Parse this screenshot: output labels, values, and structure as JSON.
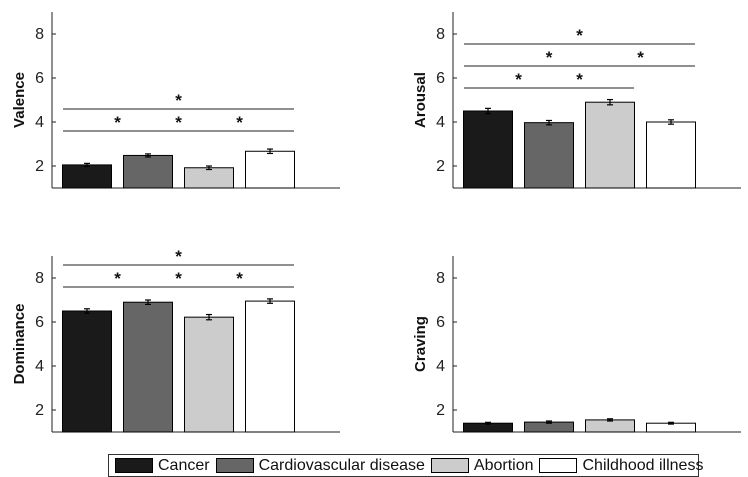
{
  "legend": {
    "items": [
      {
        "label": "Cancer",
        "color": "#1a1a1a"
      },
      {
        "label": "Cardiovascular disease",
        "color": "#666666"
      },
      {
        "label": "Abortion",
        "color": "#cccccc"
      },
      {
        "label": "Childhood illness",
        "color": "#ffffff"
      }
    ]
  },
  "chart_data": [
    {
      "type": "bar",
      "ylabel": "Valence",
      "categories": [
        "Cancer",
        "Cardiovascular disease",
        "Abortion",
        "Childhood illness"
      ],
      "values": [
        2.05,
        2.48,
        1.92,
        2.67
      ],
      "errors": [
        0.07,
        0.07,
        0.08,
        0.1
      ],
      "ylim": [
        1,
        9
      ],
      "yticks": [
        2,
        4,
        6,
        8
      ],
      "significance": [
        {
          "from": 0,
          "to": 1,
          "label": "*"
        },
        {
          "from": 1,
          "to": 2,
          "label": "*"
        },
        {
          "from": 2,
          "to": 3,
          "label": "*"
        },
        {
          "from": 0,
          "to": 3,
          "label": "*"
        }
      ]
    },
    {
      "type": "bar",
      "ylabel": "Arousal",
      "categories": [
        "Cancer",
        "Cardiovascular disease",
        "Abortion",
        "Childhood illness"
      ],
      "values": [
        4.5,
        3.97,
        4.9,
        4.0
      ],
      "errors": [
        0.12,
        0.1,
        0.12,
        0.1
      ],
      "ylim": [
        1,
        9
      ],
      "yticks": [
        2,
        4,
        6,
        8
      ],
      "significance": [
        {
          "from": 0,
          "to": 1,
          "label": "*"
        },
        {
          "from": 1,
          "to": 2,
          "label": "*"
        },
        {
          "from": 0,
          "to": 2,
          "label": "*"
        },
        {
          "from": 2,
          "to": 3,
          "label": "*"
        },
        {
          "from": 0,
          "to": 3,
          "label": "*"
        }
      ]
    },
    {
      "type": "bar",
      "ylabel": "Dominance",
      "categories": [
        "Cancer",
        "Cardiovascular disease",
        "Abortion",
        "Childhood illness"
      ],
      "values": [
        6.5,
        6.9,
        6.22,
        6.95
      ],
      "errors": [
        0.1,
        0.1,
        0.12,
        0.1
      ],
      "ylim": [
        1,
        9
      ],
      "yticks": [
        2,
        4,
        6,
        8
      ],
      "significance": [
        {
          "from": 0,
          "to": 1,
          "label": "*"
        },
        {
          "from": 1,
          "to": 2,
          "label": "*"
        },
        {
          "from": 2,
          "to": 3,
          "label": "*"
        },
        {
          "from": 0,
          "to": 3,
          "label": "*"
        }
      ]
    },
    {
      "type": "bar",
      "ylabel": "Craving",
      "categories": [
        "Cancer",
        "Cardiovascular disease",
        "Abortion",
        "Childhood illness"
      ],
      "values": [
        1.4,
        1.45,
        1.55,
        1.4
      ],
      "errors": [
        0.04,
        0.05,
        0.05,
        0.04
      ],
      "ylim": [
        1,
        9
      ],
      "yticks": [
        2,
        4,
        6,
        8
      ],
      "significance": []
    }
  ]
}
